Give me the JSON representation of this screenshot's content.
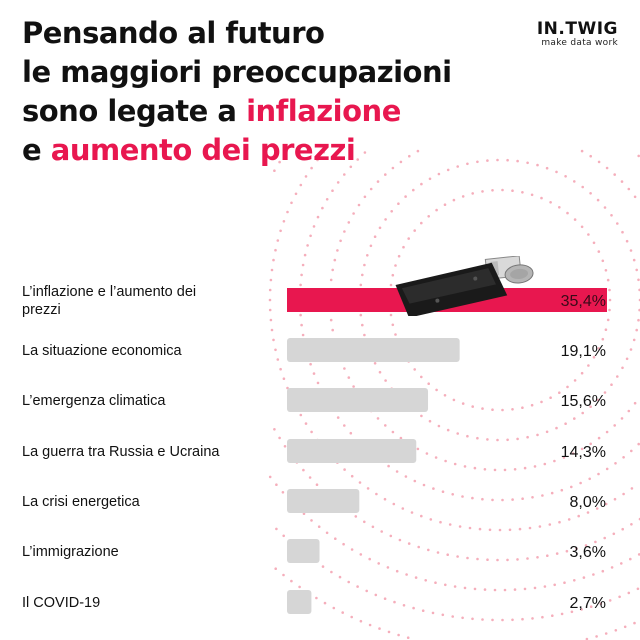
{
  "header": {
    "title_line1": "Pensando al futuro",
    "title_line2": "le maggiori preoccupazioni",
    "title_line3_plain": "sono legate a ",
    "title_line3_accent": "inflazione",
    "title_line4_plain": "e ",
    "title_line4_accent": "aumento dei prezzi"
  },
  "logo": {
    "main": "IN.TWIG",
    "sub": "make data work"
  },
  "colors": {
    "accent": "#e8174f",
    "bar_gray": "#d6d6d6",
    "dots": "#f29aaa",
    "text": "#111111"
  },
  "chart_data": {
    "type": "bar",
    "orientation": "horizontal",
    "categories": [
      "L’inflazione e l’aumento dei prezzi",
      "La situazione economica",
      "L’emergenza climatica",
      "La guerra tra Russia e Ucraina",
      "La crisi energetica",
      "L’immigrazione",
      "Il COVID-19"
    ],
    "values": [
      35.4,
      19.1,
      15.6,
      14.3,
      8.0,
      3.6,
      2.7
    ],
    "value_labels": [
      "35,4%",
      "19,1%",
      "15,6%",
      "14,3%",
      "8,0%",
      "3,6%",
      "2,7%"
    ],
    "highlight_index": 0,
    "xlim": [
      0,
      35.4
    ]
  }
}
